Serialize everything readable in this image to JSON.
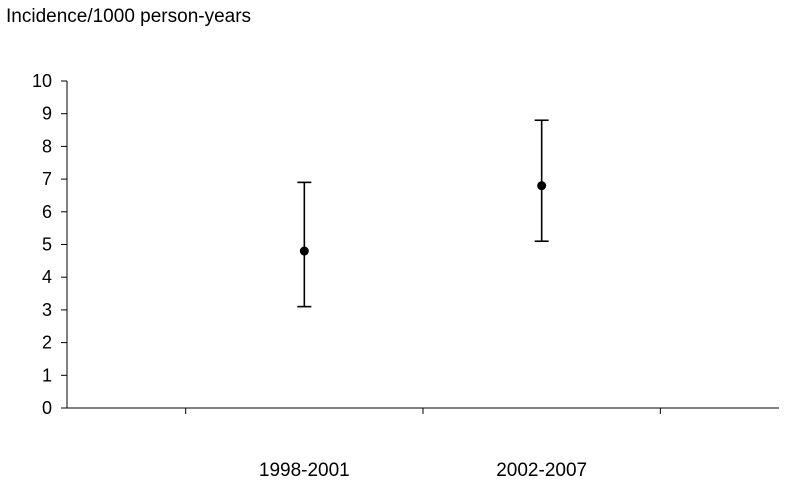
{
  "chart_data": {
    "type": "scatter",
    "title": "",
    "ylabel": "Incidence/1000 person-years",
    "xlabel": "",
    "categories": [
      "1998-2001",
      "2002-2007"
    ],
    "series": [
      {
        "values": [
          4.8,
          6.8
        ],
        "lower": [
          3.1,
          5.1
        ],
        "upper": [
          6.9,
          8.8
        ]
      }
    ],
    "ylim": [
      0,
      10
    ],
    "yticks": [
      0,
      1,
      2,
      3,
      4,
      5,
      6,
      7,
      8,
      9,
      10
    ],
    "grid": false,
    "legend": "none"
  }
}
